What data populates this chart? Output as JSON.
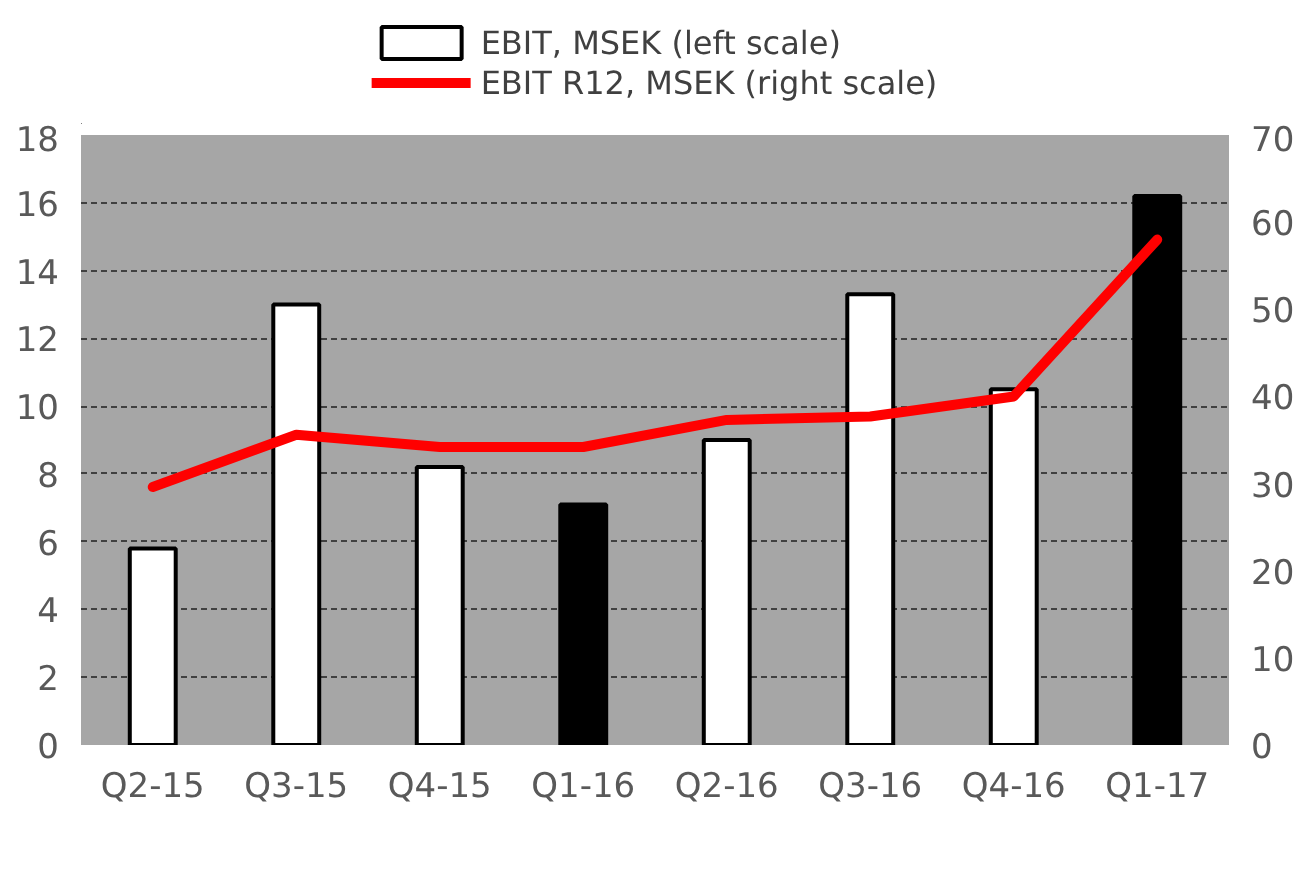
{
  "chart_data": {
    "type": "bar",
    "categories": [
      "Q2-15",
      "Q3-15",
      "Q4-15",
      "Q1-16",
      "Q2-16",
      "Q3-16",
      "Q4-16",
      "Q1-17"
    ],
    "series": [
      {
        "name": "EBIT, MSEK (left scale)",
        "color": "#ffffff",
        "colors": [
          "#ffffff",
          "#ffffff",
          "#ffffff",
          "#000000",
          "#ffffff",
          "#ffffff",
          "#ffffff",
          "#000000"
        ],
        "values": [
          5.8,
          13.0,
          8.2,
          7.1,
          9.0,
          13.3,
          10.5,
          16.2
        ]
      },
      {
        "name": "EBIT R12, MSEK (right scale)",
        "type": "line",
        "axis": "y2",
        "color": "#ff0000",
        "values": [
          29.6,
          35.6,
          34.2,
          34.2,
          37.3,
          37.7,
          40.0,
          58.0
        ]
      }
    ],
    "ylim": [
      0,
      18
    ],
    "yticks": [
      0,
      2,
      4,
      6,
      8,
      10,
      12,
      14,
      16,
      18
    ],
    "y2lim": [
      0,
      70
    ],
    "y2ticks": [
      0,
      10,
      20,
      30,
      40,
      50,
      60,
      70
    ],
    "grid": "y",
    "legend": "top"
  }
}
